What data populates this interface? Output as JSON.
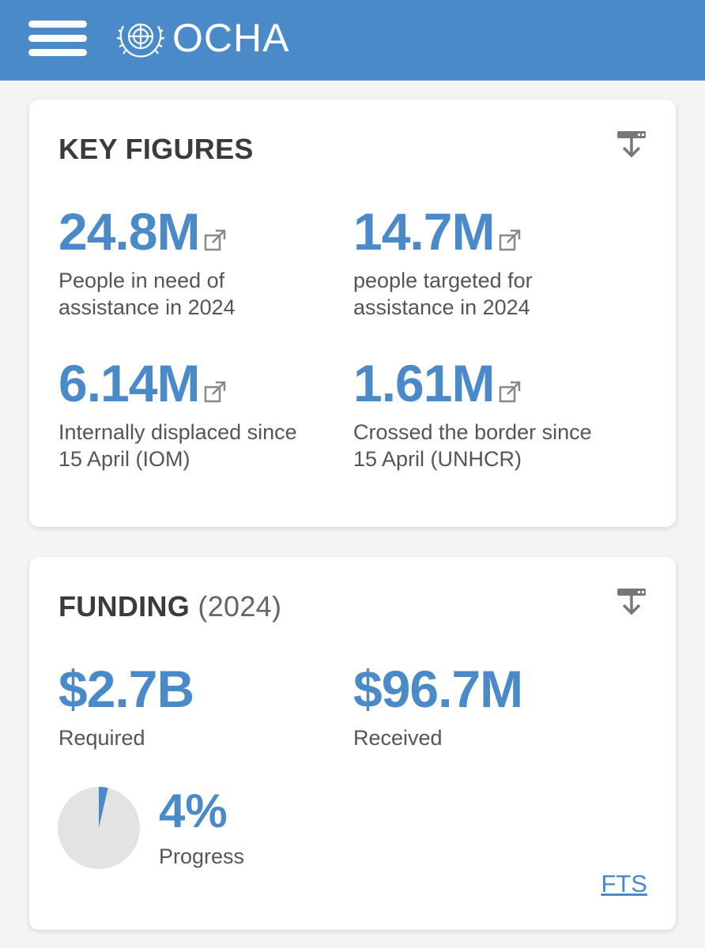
{
  "header": {
    "brand": "OCHA",
    "menu_icon": "hamburger-menu-icon",
    "emblem_icon": "un-emblem-icon",
    "bg_color": "#4a8ac9"
  },
  "key_figures": {
    "title": "KEY FIGURES",
    "download_icon": "download-icon",
    "items": [
      {
        "value": "24.8M",
        "label_line1": "People in need of",
        "label_line2": "assistance in 2024",
        "icon": "external-link-icon"
      },
      {
        "value": "14.7M",
        "label_line1": "people targeted for",
        "label_line2": "assistance in 2024",
        "icon": "external-link-icon"
      },
      {
        "value": "6.14M",
        "label_line1": "Internally displaced since",
        "label_line2": "15 April (IOM)",
        "icon": "external-link-icon"
      },
      {
        "value": "1.61M",
        "label_line1": "Crossed the border since",
        "label_line2": "15 April (UNHCR)",
        "icon": "external-link-icon"
      }
    ]
  },
  "funding": {
    "title": "FUNDING",
    "year": "(2024)",
    "download_icon": "download-icon",
    "required_value": "$2.7B",
    "required_label": "Required",
    "received_value": "$96.7M",
    "received_label": "Received",
    "progress_value": "4%",
    "progress_label": "Progress",
    "progress_fraction": 0.036,
    "link_label": "FTS"
  },
  "colors": {
    "accent": "#4a8ac9",
    "pie_background": "#e3e3e3",
    "text_dark": "#3b3b3b",
    "text_muted": "#555555"
  }
}
